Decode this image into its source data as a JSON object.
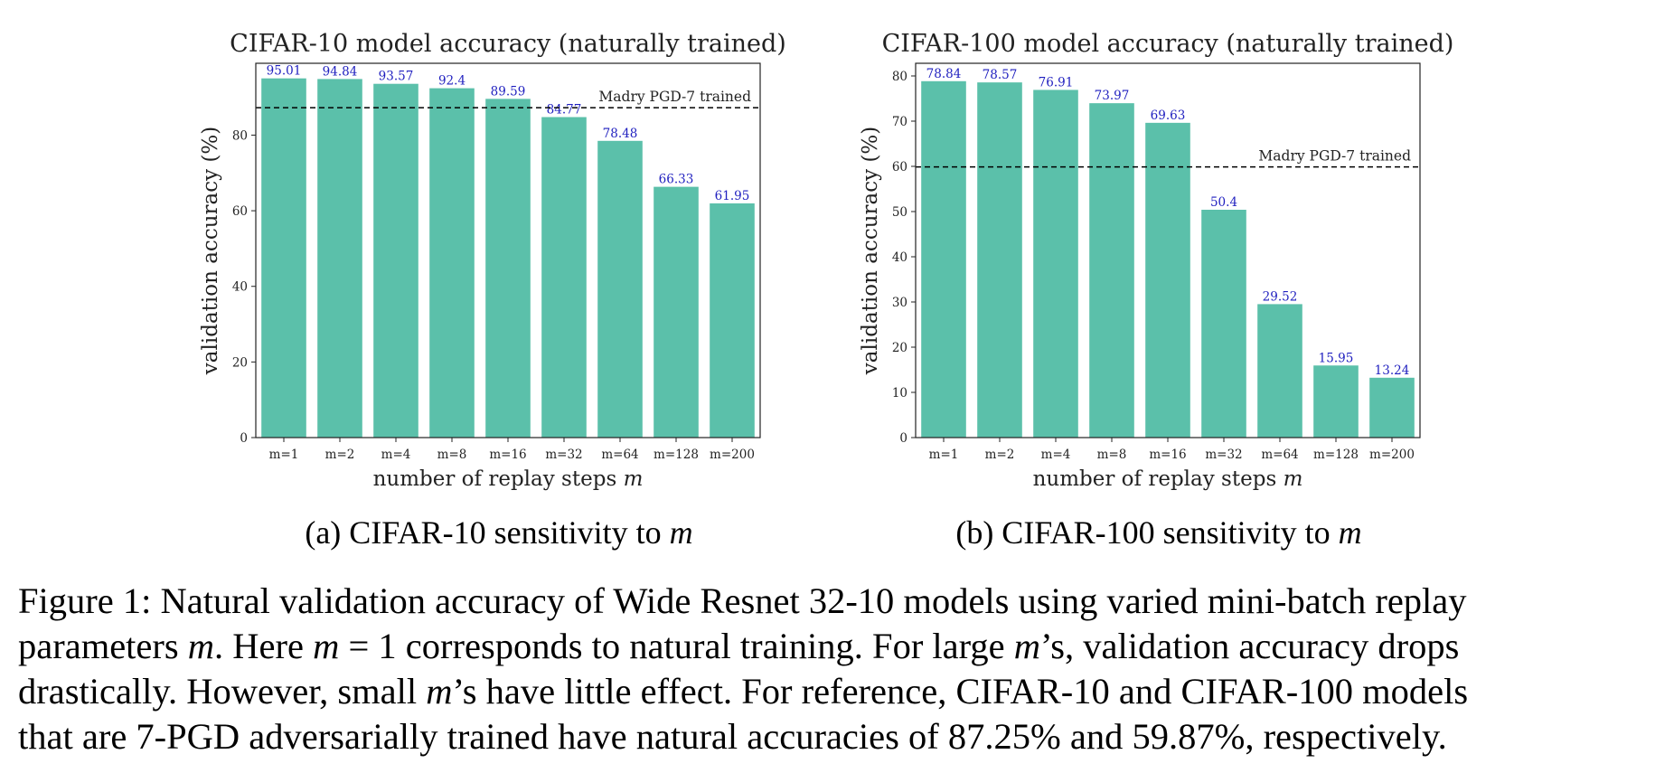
{
  "colors": {
    "bar": "#5bc0aa",
    "label": "#1f1fbf",
    "axis": "#222222",
    "reference_line": "#000000"
  },
  "chart_data": [
    {
      "type": "bar",
      "title": "CIFAR-10 model accuracy (naturally trained)",
      "xlabel": "number of replay steps",
      "xlabel_var": "m",
      "ylabel": "validation accuracy (%)",
      "categories": [
        "m=1",
        "m=2",
        "m=4",
        "m=8",
        "m=16",
        "m=32",
        "m=64",
        "m=128",
        "m=200"
      ],
      "values": [
        95.01,
        94.84,
        93.57,
        92.4,
        89.59,
        84.77,
        78.48,
        66.33,
        61.95
      ],
      "data_labels": [
        "95.01",
        "94.84",
        "93.57",
        "92.4",
        "89.59",
        "84.77",
        "78.48",
        "66.33",
        "61.95"
      ],
      "ylim": [
        0,
        99
      ],
      "yticks": [
        0,
        20,
        40,
        60,
        80
      ],
      "reference_line": {
        "value": 87.25,
        "label": "Madry PGD-7 trained",
        "style": "dashed"
      },
      "grid": false,
      "subcaption": "(a) CIFAR-10 sensitivity to",
      "subcaption_var": "m"
    },
    {
      "type": "bar",
      "title": "CIFAR-100 model accuracy (naturally trained)",
      "xlabel": "number of replay steps",
      "xlabel_var": "m",
      "ylabel": "validation accuracy (%)",
      "categories": [
        "m=1",
        "m=2",
        "m=4",
        "m=8",
        "m=16",
        "m=32",
        "m=64",
        "m=128",
        "m=200"
      ],
      "values": [
        78.84,
        78.57,
        76.91,
        73.97,
        69.63,
        50.4,
        29.52,
        15.95,
        13.24
      ],
      "data_labels": [
        "78.84",
        "78.57",
        "76.91",
        "73.97",
        "69.63",
        "50.4",
        "29.52",
        "15.95",
        "13.24"
      ],
      "ylim": [
        0,
        82.8
      ],
      "yticks": [
        0,
        10,
        20,
        30,
        40,
        50,
        60,
        70,
        80
      ],
      "reference_line": {
        "value": 59.87,
        "label": "Madry PGD-7 trained",
        "style": "dashed"
      },
      "grid": false,
      "subcaption": "(b) CIFAR-100 sensitivity to",
      "subcaption_var": "m"
    }
  ],
  "caption": {
    "lines": [
      [
        {
          "t": "Figure 1: Natural validation accuracy of Wide Resnet 32-10 models using varied mini-batch replay"
        }
      ],
      [
        {
          "t": "parameters "
        },
        {
          "t": "m",
          "math": true
        },
        {
          "t": ". Here "
        },
        {
          "t": "m",
          "math": true
        },
        {
          "t": " = 1 corresponds to natural training. For large "
        },
        {
          "t": "m",
          "math": true
        },
        {
          "t": "’s, validation accuracy drops"
        }
      ],
      [
        {
          "t": "drastically. However, small "
        },
        {
          "t": "m",
          "math": true
        },
        {
          "t": "’s have little effect. For reference, CIFAR-10 and CIFAR-100 models"
        }
      ],
      [
        {
          "t": "that are 7-PGD adversarially trained have natural accuracies of 87.25% and 59.87%, respectively."
        }
      ]
    ]
  }
}
